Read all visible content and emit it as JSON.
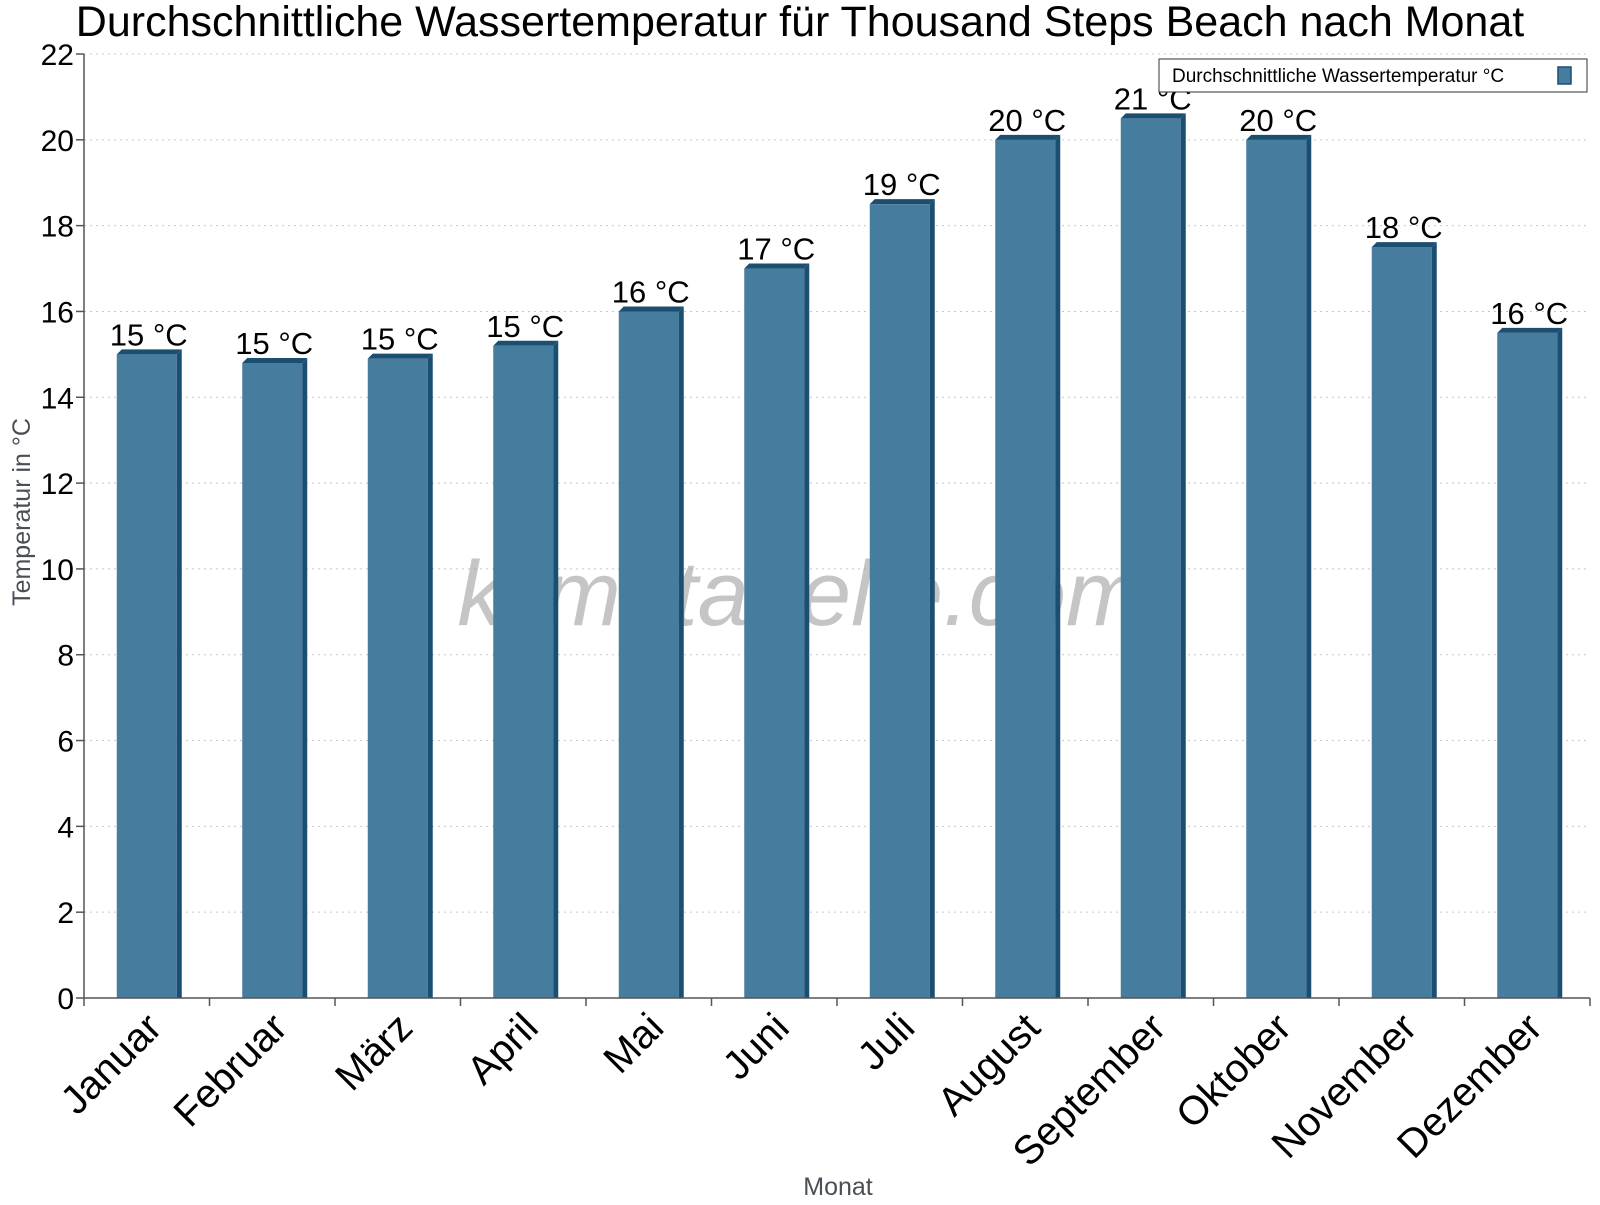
{
  "chart_data": {
    "type": "bar",
    "title": "Durchschnittliche Wassertemperatur für Thousand Steps Beach nach Monat",
    "xlabel": "Monat",
    "ylabel": "Temperatur in °C",
    "ylim": [
      0,
      22
    ],
    "yticks": [
      0,
      2,
      4,
      6,
      8,
      10,
      12,
      14,
      16,
      18,
      20,
      22
    ],
    "grid": true,
    "legend_position": "top-right",
    "categories": [
      "Januar",
      "Februar",
      "März",
      "April",
      "Mai",
      "Juni",
      "Juli",
      "August",
      "September",
      "Oktober",
      "November",
      "Dezember"
    ],
    "series": [
      {
        "name": "Durchschnittliche Wassertemperatur °C",
        "values": [
          15.0,
          14.8,
          14.9,
          15.2,
          16.0,
          17.0,
          18.5,
          20.0,
          20.5,
          20.0,
          17.5,
          15.5
        ],
        "labels": [
          "15 °C",
          "15 °C",
          "15 °C",
          "15 °C",
          "16 °C",
          "17 °C",
          "19 °C",
          "20 °C",
          "21 °C",
          "20 °C",
          "18 °C",
          "16 °C"
        ],
        "color": "#467c9e",
        "edge_color": "#1b4f72"
      }
    ],
    "watermark": "klimatabelle.com"
  }
}
